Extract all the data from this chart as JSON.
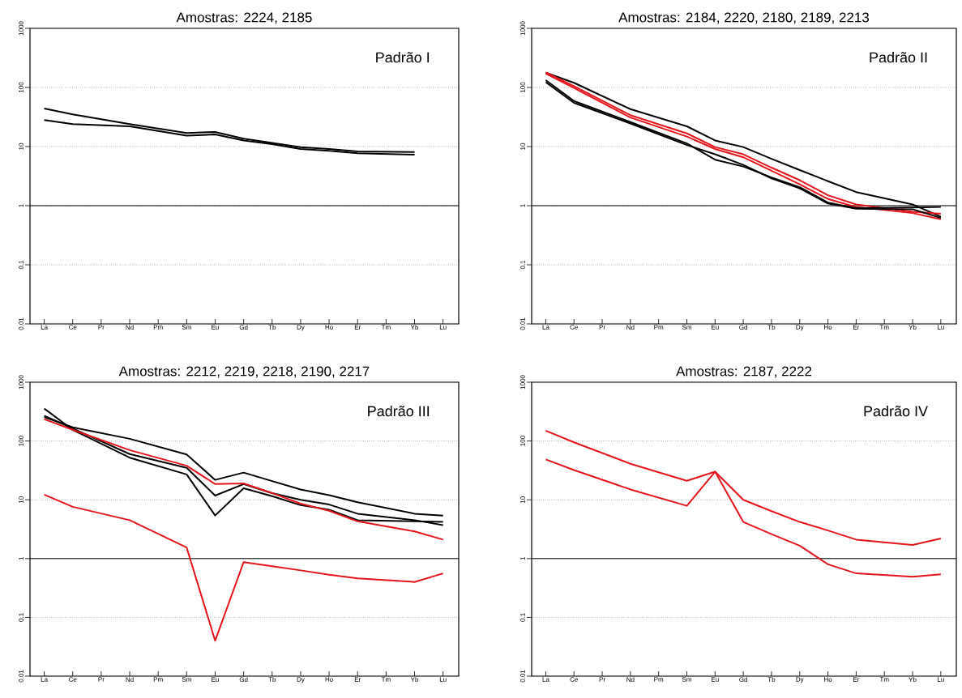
{
  "chart_data": [
    {
      "type": "line",
      "title": "Amostras: 2224, 2185",
      "annotations": [
        "Padrão I"
      ],
      "categories": [
        "La",
        "Ce",
        "Pr",
        "Nd",
        "Pm",
        "Sm",
        "Eu",
        "Gd",
        "Tb",
        "Dy",
        "Ho",
        "Er",
        "Tm",
        "Yb",
        "Lu"
      ],
      "series": [
        {
          "color": "#000000",
          "values": [
            44,
            35,
            null,
            24,
            null,
            17,
            17.7,
            13.6,
            11.5,
            9.8,
            9.1,
            8.3,
            null,
            8.1,
            null
          ]
        },
        {
          "color": "#000000",
          "values": [
            28,
            24,
            null,
            22,
            null,
            15.3,
            16,
            12.7,
            11,
            9.1,
            8.5,
            7.7,
            null,
            7.3,
            null
          ]
        }
      ],
      "ylim": [
        0.01,
        1000
      ],
      "yticks": [
        0.01,
        0.1,
        1,
        10,
        100,
        1000
      ],
      "log": true,
      "grid": "y",
      "ref_lines": [
        {
          "axis": "y",
          "value": 1
        }
      ]
    },
    {
      "type": "line",
      "title": "Amostras: 2184, 2220, 2180, 2189, 2213",
      "annotations": [
        "Padrão II"
      ],
      "categories": [
        "La",
        "Ce",
        "Pr",
        "Nd",
        "Pm",
        "Sm",
        "Eu",
        "Gd",
        "Tb",
        "Dy",
        "Ho",
        "Er",
        "Tm",
        "Yb",
        "Lu"
      ],
      "series": [
        {
          "color": "#000000",
          "values": [
            178,
            120,
            null,
            43,
            null,
            22,
            12.7,
            9.8,
            6.2,
            4.0,
            2.6,
            1.7,
            null,
            1.05,
            0.65
          ]
        },
        {
          "color": "#e3141b",
          "values": [
            180,
            105,
            null,
            34,
            null,
            16.7,
            9.8,
            7.4,
            4.4,
            2.7,
            1.5,
            1.05,
            null,
            0.79,
            0.73
          ]
        },
        {
          "color": "#e3141b",
          "values": [
            172,
            98,
            null,
            31,
            null,
            14.8,
            9.1,
            6.6,
            3.9,
            2.3,
            1.3,
            0.95,
            null,
            0.75,
            0.59
          ]
        },
        {
          "color": "#000000",
          "values": [
            133,
            59,
            null,
            26,
            null,
            11.3,
            6.0,
            4.6,
            3.0,
            2.05,
            1.13,
            0.91,
            null,
            0.93,
            0.95
          ]
        },
        {
          "color": "#000000",
          "values": [
            123,
            55,
            null,
            24.6,
            null,
            10.6,
            7.4,
            4.9,
            2.9,
            1.96,
            1.09,
            0.89,
            null,
            0.87,
            0.62
          ]
        }
      ],
      "ylim": [
        0.01,
        1000
      ],
      "yticks": [
        0.01,
        0.1,
        1,
        10,
        100,
        1000
      ],
      "log": true,
      "grid": "y",
      "ref_lines": [
        {
          "axis": "y",
          "value": 1
        }
      ]
    },
    {
      "type": "line",
      "title": "Amostras: 2212, 2219, 2218, 2190, 2217",
      "annotations": [
        "Padrão III"
      ],
      "categories": [
        "La",
        "Ce",
        "Pr",
        "Nd",
        "Pm",
        "Sm",
        "Eu",
        "Gd",
        "Tb",
        "Dy",
        "Ho",
        "Er",
        "Tm",
        "Yb",
        "Lu"
      ],
      "series": [
        {
          "color": "#000000",
          "values": [
            356,
            155,
            null,
            52,
            null,
            27,
            5.4,
            15.7,
            11.5,
            8.1,
            6.8,
            4.5,
            null,
            4.3,
            4.2
          ]
        },
        {
          "color": "#000000",
          "values": [
            256,
            171,
            null,
            109,
            null,
            59,
            21.8,
            29,
            20.8,
            15,
            12,
            9.1,
            null,
            5.8,
            5.4
          ]
        },
        {
          "color": "#000000",
          "values": [
            270,
            163,
            null,
            60,
            null,
            35,
            11.8,
            18.5,
            13,
            10,
            8.3,
            5.8,
            null,
            4.5,
            3.7
          ]
        },
        {
          "color": "#e3141b",
          "values": [
            235,
            155,
            null,
            70,
            null,
            38,
            18.5,
            19,
            13,
            8.6,
            6.5,
            4.3,
            null,
            2.9,
            2.1
          ]
        },
        {
          "color": "#e3141b",
          "values": [
            12.2,
            7.6,
            null,
            4.5,
            null,
            1.54,
            0.04,
            0.87,
            0.74,
            0.63,
            0.53,
            0.46,
            null,
            0.4,
            0.56
          ]
        }
      ],
      "ylim": [
        0.01,
        1000
      ],
      "yticks": [
        0.01,
        0.1,
        1,
        10,
        100,
        1000
      ],
      "log": true,
      "grid": "y",
      "ref_lines": [
        {
          "axis": "y",
          "value": 1
        }
      ]
    },
    {
      "type": "line",
      "title": "Amostras: 2187, 2222",
      "annotations": [
        "Padrão IV"
      ],
      "categories": [
        "La",
        "Ce",
        "Pr",
        "Nd",
        "Pm",
        "Sm",
        "Eu",
        "Gd",
        "Tb",
        "Dy",
        "Ho",
        "Er",
        "Tm",
        "Yb",
        "Lu"
      ],
      "series": [
        {
          "color": "#e3141b",
          "values": [
            150,
            95,
            null,
            41,
            null,
            21,
            30,
            10,
            6.4,
            4.2,
            3.0,
            2.1,
            null,
            1.7,
            2.2
          ]
        },
        {
          "color": "#e3141b",
          "values": [
            48.5,
            32,
            null,
            15,
            null,
            7.9,
            30,
            4.2,
            2.6,
            1.66,
            0.8,
            0.56,
            null,
            0.49,
            0.54
          ]
        }
      ],
      "ylim": [
        0.01,
        1000
      ],
      "yticks": [
        0.01,
        0.1,
        1,
        10,
        100,
        1000
      ],
      "log": true,
      "grid": "y",
      "ref_lines": [
        {
          "axis": "y",
          "value": 1
        }
      ]
    }
  ]
}
